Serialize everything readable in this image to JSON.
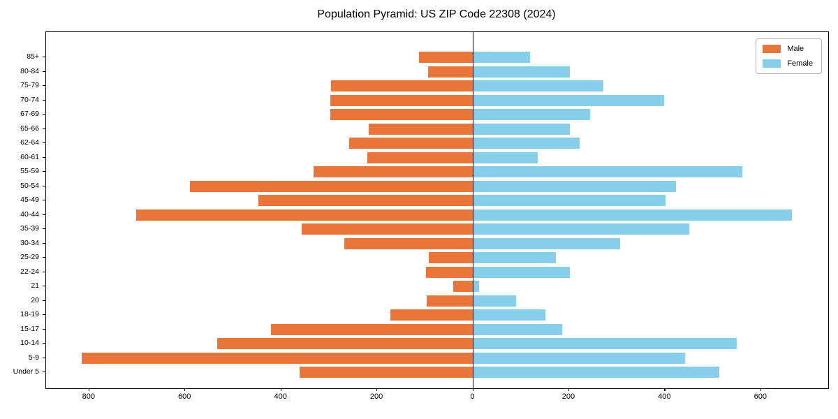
{
  "chart_data": {
    "type": "bar",
    "variant": "population-pyramid",
    "title": "Population Pyramid: US ZIP Code 22308 (2024)",
    "categories": [
      "85+",
      "80-84",
      "75-79",
      "70-74",
      "67-69",
      "65-66",
      "62-64",
      "60-61",
      "55-59",
      "50-54",
      "45-49",
      "40-44",
      "35-39",
      "30-34",
      "25-29",
      "22-24",
      "21",
      "20",
      "18-19",
      "15-17",
      "10-14",
      "5-9",
      "Under 5"
    ],
    "series": [
      {
        "name": "Male",
        "side": "left",
        "color": "#e8763b",
        "values": [
          113,
          94,
          296,
          297,
          297,
          218,
          258,
          220,
          332,
          590,
          448,
          702,
          358,
          269,
          93,
          99,
          42,
          97,
          172,
          422,
          534,
          816,
          362
        ]
      },
      {
        "name": "Female",
        "side": "right",
        "color": "#87ceeb",
        "values": [
          118,
          201,
          271,
          398,
          243,
          201,
          222,
          134,
          561,
          423,
          401,
          665,
          451,
          306,
          172,
          201,
          13,
          89,
          151,
          185,
          550,
          442,
          513
        ]
      }
    ],
    "x_axis": {
      "xlim": [
        -890,
        740
      ],
      "tick_values": [
        -800,
        -600,
        -400,
        -200,
        0,
        200,
        400,
        600
      ],
      "tick_labels": [
        "800",
        "600",
        "400",
        "200",
        "0",
        "200",
        "400",
        "600"
      ]
    },
    "legend": {
      "position": "upper-right",
      "entries": [
        "Male",
        "Female"
      ]
    },
    "grid": false,
    "zero_line_color": "#000000",
    "frame_color": "#000000",
    "background_color": "#ffffff"
  }
}
